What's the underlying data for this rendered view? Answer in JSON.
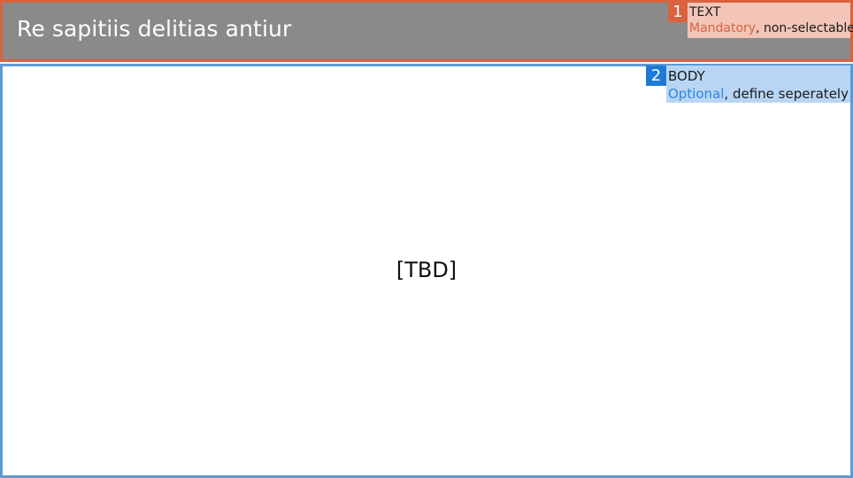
{
  "header": {
    "title": "Re sapitiis delitias antiur"
  },
  "body": {
    "placeholder": "[TBD]"
  },
  "annotations": [
    {
      "number": "1",
      "name": "TEXT",
      "requirement": "Mandatory",
      "note": ", non-selectable",
      "color": "#d9623f"
    },
    {
      "number": "2",
      "name": "BODY",
      "requirement": "Optional",
      "note": ", define seperately",
      "color": "#1f7ad6"
    }
  ],
  "colors": {
    "header_bg": "#8a8a8a",
    "header_border": "#d9623f",
    "body_border": "#5b9bd5"
  }
}
